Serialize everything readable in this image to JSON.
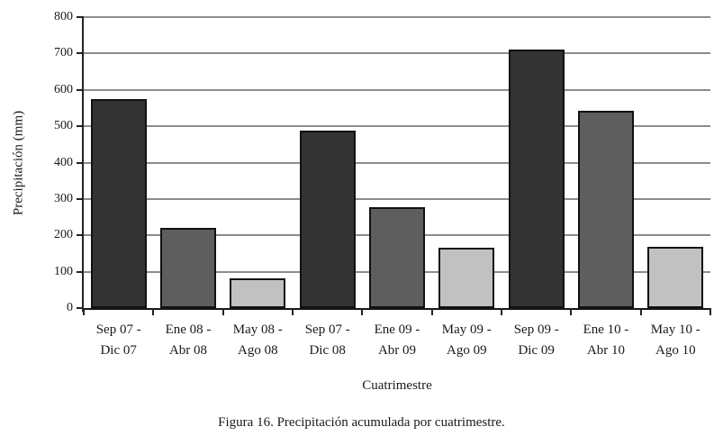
{
  "figure": {
    "caption": "Figura 16. Precipitación acumulada por cuatrimestre."
  },
  "chart_data": {
    "type": "bar",
    "title": "",
    "xlabel": "Cuatrimestre",
    "ylabel": "Precipitación (mm)",
    "ylim": [
      0,
      800
    ],
    "ytick_step": 100,
    "grid": true,
    "legend": "none",
    "categories": [
      [
        "Sep 07 -",
        "Dic 07"
      ],
      [
        "Ene 08 -",
        "Abr 08"
      ],
      [
        "May 08 -",
        "Ago 08"
      ],
      [
        "Sep 07 -",
        "Dic 08"
      ],
      [
        "Ene 09 -",
        "Abr 09"
      ],
      [
        "May 09 -",
        "Ago 09"
      ],
      [
        "Sep 09 -",
        "Dic 09"
      ],
      [
        "Ene 10 -",
        "Abr 10"
      ],
      [
        "May 10 -",
        "Ago 10"
      ]
    ],
    "values": [
      575,
      220,
      82,
      487,
      277,
      165,
      710,
      543,
      168
    ],
    "bar_color_roles": [
      "dark",
      "medium",
      "light",
      "dark",
      "medium",
      "light",
      "dark",
      "medium",
      "light"
    ],
    "colors": {
      "dark": "#333333",
      "medium": "#5e5e5e",
      "light": "#c1c1c1",
      "bar_border": "#111111",
      "grid": "#8c8c8c",
      "axis": "#1a1a1a",
      "text": "#1a1a1a"
    }
  }
}
